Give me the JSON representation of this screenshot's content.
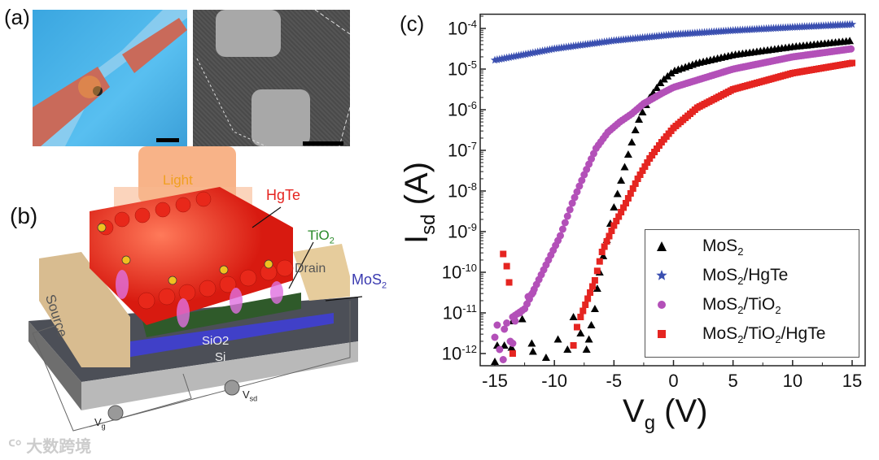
{
  "panels": {
    "a": {
      "label": "(a)"
    },
    "b": {
      "label": "(b)",
      "light": "Light",
      "hgte": "HgTe",
      "tio2": "TiO",
      "tio2_sub": "2",
      "mos2": "MoS",
      "mos2_sub": "2",
      "source": "Source",
      "drain": "Drain",
      "sio2": "SiO2",
      "si": "Si",
      "vg": "V",
      "vg_sub": "g",
      "vsd": "V",
      "vsd_sub": "sd"
    },
    "c": {
      "label": "(c)"
    }
  },
  "watermark": "大数跨境",
  "chart_data": {
    "type": "scatter",
    "title": "",
    "xlabel": "V",
    "xlabel_sub": "g",
    "xlabel_unit": " (V)",
    "ylabel": "I",
    "ylabel_sub": "sd",
    "ylabel_unit": " (A)",
    "yscale": "log",
    "xlim": [
      -16,
      16
    ],
    "ylim_log10": [
      -12.3,
      -3.65
    ],
    "xticks": [
      "-15",
      "-10",
      "-5",
      "0",
      "5",
      "10",
      "15"
    ],
    "xtick_values": [
      -15,
      -10,
      -5,
      0,
      5,
      10,
      15
    ],
    "yticks": [
      {
        "base": "10",
        "exp": "-4",
        "value": -4
      },
      {
        "base": "10",
        "exp": "-5",
        "value": -5
      },
      {
        "base": "10",
        "exp": "-6",
        "value": -6
      },
      {
        "base": "10",
        "exp": "-7",
        "value": -7
      },
      {
        "base": "10",
        "exp": "-8",
        "value": -8
      },
      {
        "base": "10",
        "exp": "-9",
        "value": -9
      },
      {
        "base": "10",
        "exp": "-10",
        "value": -10
      },
      {
        "base": "10",
        "exp": "-11",
        "value": -11
      },
      {
        "base": "10",
        "exp": "-12",
        "value": -12
      }
    ],
    "legend_position": "bottom-right",
    "series": [
      {
        "name": "MoS",
        "sub": "2",
        "rest": "",
        "marker": "triangle",
        "color": "#000000",
        "curve_log10": [
          [
            -6.2,
            -10
          ],
          [
            -5,
            -8.4
          ],
          [
            -4,
            -7.3
          ],
          [
            -3,
            -6.3
          ],
          [
            -2,
            -5.7
          ],
          [
            -1,
            -5.3
          ],
          [
            0,
            -5.05
          ],
          [
            2,
            -4.85
          ],
          [
            5,
            -4.65
          ],
          [
            10,
            -4.45
          ],
          [
            15,
            -4.3
          ]
        ],
        "scatter_log10": [
          [
            -15,
            -12.2
          ],
          [
            -14.8,
            -11.8
          ],
          [
            -14.2,
            -11.8
          ],
          [
            -13.6,
            -11.85
          ],
          [
            -13.5,
            -11.2
          ],
          [
            -12.7,
            -11.15
          ],
          [
            -11.9,
            -11.75
          ],
          [
            -11.8,
            -11.95
          ],
          [
            -10.7,
            -12.1
          ],
          [
            -9.7,
            -11.65
          ],
          [
            -8.9,
            -11.9
          ],
          [
            -8.4,
            -11.1
          ],
          [
            -7.8,
            -11.5
          ],
          [
            -7.3,
            -11.9
          ],
          [
            -7.1,
            -11.65
          ],
          [
            -6.9,
            -11.3
          ],
          [
            -6.6,
            -10.9
          ],
          [
            -6.4,
            -10.4
          ]
        ]
      },
      {
        "name": "MoS",
        "sub": "2",
        "rest": "/HgTe",
        "marker": "star",
        "color": "#3a4fb0",
        "curve_log10": [
          [
            -15,
            -4.78
          ],
          [
            -10,
            -4.5
          ],
          [
            -5,
            -4.3
          ],
          [
            0,
            -4.15
          ],
          [
            5,
            -4.05
          ],
          [
            10,
            -3.97
          ],
          [
            15,
            -3.9
          ]
        ],
        "scatter_log10": []
      },
      {
        "name": "MoS",
        "sub": "2",
        "rest": "/TiO",
        "sub2": "2",
        "marker": "circle",
        "color": "#b350b8",
        "curve_log10": [
          [
            -13.5,
            -11.1
          ],
          [
            -12.5,
            -10.9
          ],
          [
            -11.5,
            -10.3
          ],
          [
            -10.5,
            -9.7
          ],
          [
            -9.5,
            -9.1
          ],
          [
            -8.5,
            -8.3
          ],
          [
            -7.5,
            -7.6
          ],
          [
            -6.5,
            -6.95
          ],
          [
            -5.5,
            -6.55
          ],
          [
            -4.5,
            -6.3
          ],
          [
            -3.5,
            -6.1
          ],
          [
            -2.5,
            -5.85
          ],
          [
            -1,
            -5.6
          ],
          [
            0,
            -5.45
          ],
          [
            5,
            -5.0
          ],
          [
            10,
            -4.7
          ],
          [
            15,
            -4.5
          ]
        ],
        "scatter_log10": [
          [
            -15,
            -11.6
          ],
          [
            -14.8,
            -11.3
          ],
          [
            -14.6,
            -11.9
          ],
          [
            -14.3,
            -12.15
          ],
          [
            -14.2,
            -11.4
          ],
          [
            -14,
            -11.25
          ],
          [
            -13.7,
            -11.7
          ],
          [
            -13.5,
            -11.75
          ],
          [
            -13.3,
            -11.2
          ],
          [
            -12.9,
            -11
          ],
          [
            -12.2,
            -10.6
          ],
          [
            -11.8,
            -10.5
          ]
        ]
      },
      {
        "name": "MoS",
        "sub": "2",
        "rest": "/TiO",
        "sub2": "2",
        "rest2": "/HgTe",
        "marker": "square",
        "color": "#e52521",
        "curve_log10": [
          [
            -7.8,
            -11.1
          ],
          [
            -7.2,
            -10.65
          ],
          [
            -6.6,
            -10.2
          ],
          [
            -6,
            -9.5
          ],
          [
            -5,
            -8.85
          ],
          [
            -4,
            -8.3
          ],
          [
            -3,
            -7.7
          ],
          [
            -2,
            -7.2
          ],
          [
            -1,
            -6.8
          ],
          [
            0,
            -6.45
          ],
          [
            2,
            -5.95
          ],
          [
            5,
            -5.5
          ],
          [
            10,
            -5.1
          ],
          [
            15,
            -4.85
          ]
        ],
        "scatter_log10": [
          [
            -14.3,
            -9.55
          ],
          [
            -14,
            -9.85
          ],
          [
            -13.8,
            -10.25
          ],
          [
            -13.5,
            -12
          ],
          [
            -8.4,
            -11.8
          ],
          [
            -8.1,
            -11.35
          ]
        ]
      }
    ]
  }
}
